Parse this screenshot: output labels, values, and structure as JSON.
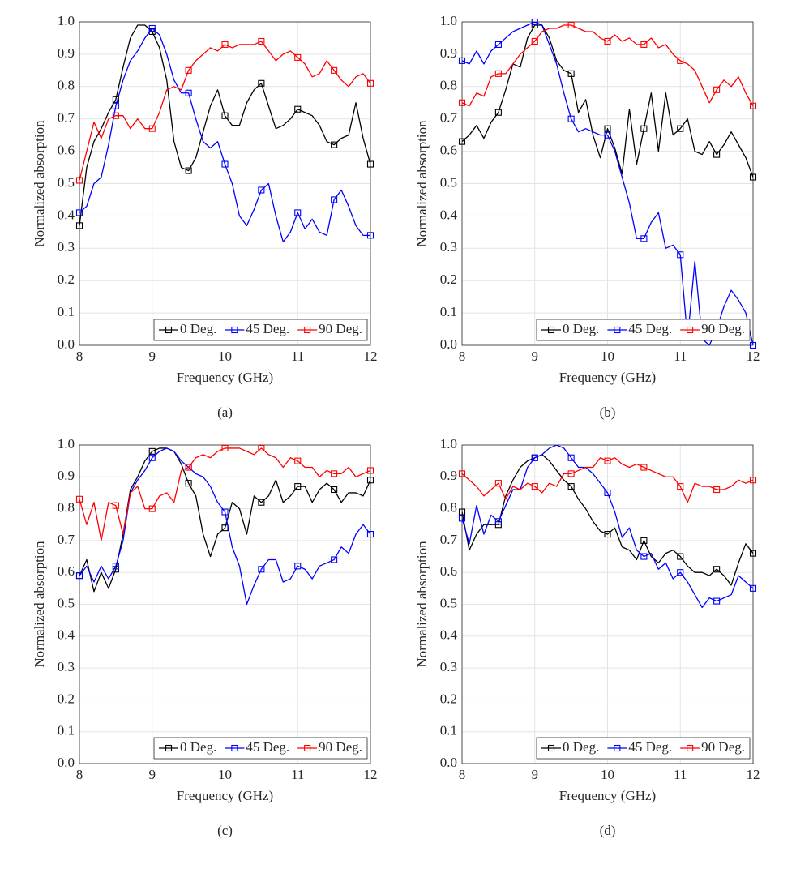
{
  "chart_data": [
    {
      "type": "line",
      "caption": "(a)",
      "xlabel": "Frequency (GHz)",
      "ylabel": "Normalized absorption",
      "x": [
        8,
        8.1,
        8.2,
        8.3,
        8.4,
        8.5,
        8.6,
        8.7,
        8.8,
        8.9,
        9,
        9.1,
        9.2,
        9.3,
        9.4,
        9.5,
        9.6,
        9.7,
        9.8,
        9.9,
        10,
        10.1,
        10.2,
        10.3,
        10.4,
        10.5,
        10.6,
        10.7,
        10.8,
        10.9,
        11,
        11.1,
        11.2,
        11.3,
        11.4,
        11.5,
        11.6,
        11.7,
        11.8,
        11.9,
        12
      ],
      "series": [
        {
          "name": "0 Deg.",
          "color": "#000000",
          "values": [
            0.37,
            0.55,
            0.63,
            0.67,
            0.72,
            0.76,
            0.86,
            0.95,
            0.99,
            0.99,
            0.97,
            0.92,
            0.82,
            0.63,
            0.55,
            0.54,
            0.58,
            0.66,
            0.74,
            0.79,
            0.71,
            0.68,
            0.68,
            0.75,
            0.79,
            0.81,
            0.74,
            0.67,
            0.68,
            0.7,
            0.73,
            0.72,
            0.71,
            0.68,
            0.63,
            0.62,
            0.64,
            0.65,
            0.75,
            0.64,
            0.56
          ]
        },
        {
          "name": "45 Deg.",
          "color": "#0000ff",
          "values": [
            0.41,
            0.43,
            0.5,
            0.52,
            0.62,
            0.74,
            0.82,
            0.88,
            0.91,
            0.95,
            0.98,
            0.96,
            0.9,
            0.82,
            0.78,
            0.78,
            0.7,
            0.63,
            0.61,
            0.63,
            0.56,
            0.5,
            0.4,
            0.37,
            0.42,
            0.48,
            0.5,
            0.4,
            0.32,
            0.35,
            0.41,
            0.36,
            0.39,
            0.35,
            0.34,
            0.45,
            0.48,
            0.43,
            0.37,
            0.34,
            0.34
          ]
        },
        {
          "name": "90 Deg.",
          "color": "#ff0000",
          "values": [
            0.51,
            0.6,
            0.69,
            0.64,
            0.7,
            0.71,
            0.71,
            0.67,
            0.7,
            0.67,
            0.67,
            0.72,
            0.79,
            0.8,
            0.79,
            0.85,
            0.88,
            0.9,
            0.92,
            0.91,
            0.93,
            0.92,
            0.93,
            0.93,
            0.93,
            0.94,
            0.91,
            0.88,
            0.9,
            0.91,
            0.89,
            0.87,
            0.83,
            0.84,
            0.88,
            0.85,
            0.82,
            0.8,
            0.83,
            0.84,
            0.81
          ]
        }
      ],
      "xlim": [
        8,
        12
      ],
      "ylim": [
        0,
        1
      ],
      "xticks": [
        8,
        9,
        10,
        11,
        12
      ],
      "yticks": [
        {
          "value": 0,
          "label": "0.0"
        },
        0.1,
        0.2,
        0.3,
        0.4,
        0.5,
        0.6,
        0.7,
        0.8,
        0.9,
        {
          "value": 1,
          "label": "1.0"
        }
      ],
      "grid": true,
      "legend": "lower right",
      "marker": "square",
      "marker_every": 5
    },
    {
      "type": "line",
      "caption": "(b)",
      "xlabel": "Frequency (GHz)",
      "ylabel": "Normalized absorption",
      "x": [
        8,
        8.1,
        8.2,
        8.3,
        8.4,
        8.5,
        8.6,
        8.7,
        8.8,
        8.9,
        9,
        9.1,
        9.2,
        9.3,
        9.4,
        9.5,
        9.6,
        9.7,
        9.8,
        9.9,
        10,
        10.1,
        10.2,
        10.3,
        10.4,
        10.5,
        10.6,
        10.7,
        10.8,
        10.9,
        11,
        11.1,
        11.2,
        11.3,
        11.4,
        11.5,
        11.6,
        11.7,
        11.8,
        11.9,
        12
      ],
      "series": [
        {
          "name": "0 Deg.",
          "color": "#000000",
          "values": [
            0.63,
            0.65,
            0.68,
            0.64,
            0.69,
            0.72,
            0.79,
            0.87,
            0.86,
            0.95,
            0.99,
            0.99,
            0.95,
            0.88,
            0.85,
            0.84,
            0.72,
            0.76,
            0.65,
            0.58,
            0.67,
            0.61,
            0.53,
            0.73,
            0.56,
            0.67,
            0.78,
            0.6,
            0.78,
            0.65,
            0.67,
            0.7,
            0.6,
            0.59,
            0.63,
            0.59,
            0.62,
            0.66,
            0.62,
            0.58,
            0.52
          ]
        },
        {
          "name": "45 Deg.",
          "color": "#0000ff",
          "values": [
            0.88,
            0.87,
            0.91,
            0.87,
            0.91,
            0.93,
            0.95,
            0.97,
            0.98,
            0.99,
            1.0,
            0.99,
            0.93,
            0.87,
            0.78,
            0.7,
            0.66,
            0.67,
            0.66,
            0.65,
            0.65,
            0.6,
            0.52,
            0.44,
            0.33,
            0.33,
            0.38,
            0.41,
            0.3,
            0.31,
            0.28,
            0.02,
            0.26,
            0.02,
            0,
            0.05,
            0.12,
            0.17,
            0.14,
            0.1,
            0
          ]
        },
        {
          "name": "90 Deg.",
          "color": "#ff0000",
          "values": [
            0.75,
            0.74,
            0.78,
            0.77,
            0.83,
            0.84,
            0.84,
            0.87,
            0.9,
            0.92,
            0.94,
            0.97,
            0.98,
            0.98,
            0.99,
            0.99,
            0.98,
            0.97,
            0.97,
            0.95,
            0.94,
            0.96,
            0.94,
            0.95,
            0.93,
            0.93,
            0.95,
            0.92,
            0.93,
            0.9,
            0.88,
            0.87,
            0.85,
            0.8,
            0.75,
            0.79,
            0.82,
            0.8,
            0.83,
            0.78,
            0.74
          ]
        }
      ],
      "xlim": [
        8,
        12
      ],
      "ylim": [
        0,
        1
      ],
      "xticks": [
        8,
        9,
        10,
        11,
        12
      ],
      "yticks": [
        {
          "value": 0,
          "label": "0.0"
        },
        0.1,
        0.2,
        0.3,
        0.4,
        0.5,
        0.6,
        0.7,
        0.8,
        0.9,
        {
          "value": 1,
          "label": "1.0"
        }
      ],
      "grid": true,
      "legend": "lower right",
      "marker": "square",
      "marker_every": 5
    },
    {
      "type": "line",
      "caption": "(c)",
      "xlabel": "Frequency (GHz)",
      "ylabel": "Normalized absorption",
      "x": [
        8,
        8.1,
        8.2,
        8.3,
        8.4,
        8.5,
        8.6,
        8.7,
        8.8,
        8.9,
        9,
        9.1,
        9.2,
        9.3,
        9.4,
        9.5,
        9.6,
        9.7,
        9.8,
        9.9,
        10,
        10.1,
        10.2,
        10.3,
        10.4,
        10.5,
        10.6,
        10.7,
        10.8,
        10.9,
        11,
        11.1,
        11.2,
        11.3,
        11.4,
        11.5,
        11.6,
        11.7,
        11.8,
        11.9,
        12
      ],
      "series": [
        {
          "name": "0 Deg.",
          "color": "#000000",
          "values": [
            0.59,
            0.64,
            0.54,
            0.6,
            0.55,
            0.61,
            0.72,
            0.86,
            0.9,
            0.95,
            0.98,
            0.99,
            0.99,
            0.98,
            0.94,
            0.88,
            0.84,
            0.72,
            0.65,
            0.72,
            0.74,
            0.82,
            0.8,
            0.72,
            0.84,
            0.82,
            0.84,
            0.89,
            0.82,
            0.84,
            0.87,
            0.87,
            0.82,
            0.86,
            0.88,
            0.86,
            0.82,
            0.85,
            0.85,
            0.84,
            0.89
          ]
        },
        {
          "name": "45 Deg.",
          "color": "#0000ff",
          "values": [
            0.59,
            0.62,
            0.57,
            0.62,
            0.58,
            0.62,
            0.7,
            0.85,
            0.89,
            0.92,
            0.96,
            0.98,
            0.99,
            0.98,
            0.95,
            0.93,
            0.91,
            0.9,
            0.87,
            0.82,
            0.79,
            0.68,
            0.62,
            0.5,
            0.56,
            0.61,
            0.64,
            0.64,
            0.57,
            0.58,
            0.62,
            0.61,
            0.58,
            0.62,
            0.63,
            0.64,
            0.68,
            0.66,
            0.72,
            0.75,
            0.72
          ]
        },
        {
          "name": "90 Deg.",
          "color": "#ff0000",
          "values": [
            0.83,
            0.75,
            0.82,
            0.7,
            0.82,
            0.81,
            0.72,
            0.85,
            0.87,
            0.8,
            0.8,
            0.84,
            0.85,
            0.82,
            0.92,
            0.93,
            0.96,
            0.97,
            0.96,
            0.98,
            0.99,
            0.99,
            0.99,
            0.98,
            0.97,
            0.99,
            0.97,
            0.96,
            0.93,
            0.96,
            0.95,
            0.93,
            0.93,
            0.9,
            0.92,
            0.91,
            0.91,
            0.93,
            0.9,
            0.91,
            0.92
          ]
        }
      ],
      "xlim": [
        8,
        12
      ],
      "ylim": [
        0,
        1
      ],
      "xticks": [
        8,
        9,
        10,
        11,
        12
      ],
      "yticks": [
        {
          "value": 0,
          "label": "0.0"
        },
        0.1,
        0.2,
        0.3,
        0.4,
        0.5,
        0.6,
        0.7,
        0.8,
        0.9,
        {
          "value": 1,
          "label": "1.0"
        }
      ],
      "grid": true,
      "legend": "lower right",
      "marker": "square",
      "marker_every": 5
    },
    {
      "type": "line",
      "caption": "(d)",
      "xlabel": "Frequency (GHz)",
      "ylabel": "Normalized absorption",
      "x": [
        8,
        8.1,
        8.2,
        8.3,
        8.4,
        8.5,
        8.6,
        8.7,
        8.8,
        8.9,
        9,
        9.1,
        9.2,
        9.3,
        9.4,
        9.5,
        9.6,
        9.7,
        9.8,
        9.9,
        10,
        10.1,
        10.2,
        10.3,
        10.4,
        10.5,
        10.6,
        10.7,
        10.8,
        10.9,
        11,
        11.1,
        11.2,
        11.3,
        11.4,
        11.5,
        11.6,
        11.7,
        11.8,
        11.9,
        12
      ],
      "series": [
        {
          "name": "0 Deg.",
          "color": "#000000",
          "values": [
            0.79,
            0.67,
            0.72,
            0.75,
            0.75,
            0.75,
            0.84,
            0.89,
            0.93,
            0.95,
            0.96,
            0.97,
            0.95,
            0.92,
            0.89,
            0.87,
            0.83,
            0.8,
            0.76,
            0.73,
            0.72,
            0.74,
            0.68,
            0.67,
            0.64,
            0.7,
            0.65,
            0.63,
            0.66,
            0.67,
            0.65,
            0.62,
            0.6,
            0.6,
            0.59,
            0.61,
            0.59,
            0.56,
            0.63,
            0.69,
            0.66
          ]
        },
        {
          "name": "45 Deg.",
          "color": "#0000ff",
          "values": [
            0.77,
            0.69,
            0.81,
            0.72,
            0.78,
            0.76,
            0.81,
            0.86,
            0.86,
            0.93,
            0.96,
            0.97,
            0.99,
            1.0,
            0.99,
            0.96,
            0.93,
            0.93,
            0.91,
            0.88,
            0.85,
            0.79,
            0.71,
            0.74,
            0.67,
            0.65,
            0.66,
            0.61,
            0.63,
            0.58,
            0.6,
            0.57,
            0.53,
            0.49,
            0.52,
            0.51,
            0.52,
            0.53,
            0.59,
            0.57,
            0.55
          ]
        },
        {
          "name": "90 Deg.",
          "color": "#ff0000",
          "values": [
            0.91,
            0.89,
            0.87,
            0.84,
            0.86,
            0.88,
            0.83,
            0.87,
            0.86,
            0.88,
            0.87,
            0.85,
            0.88,
            0.87,
            0.91,
            0.91,
            0.92,
            0.93,
            0.93,
            0.96,
            0.95,
            0.96,
            0.94,
            0.93,
            0.94,
            0.93,
            0.92,
            0.91,
            0.9,
            0.9,
            0.87,
            0.82,
            0.88,
            0.87,
            0.87,
            0.86,
            0.86,
            0.87,
            0.89,
            0.88,
            0.89
          ]
        }
      ],
      "xlim": [
        8,
        12
      ],
      "ylim": [
        0,
        1
      ],
      "xticks": [
        8,
        9,
        10,
        11,
        12
      ],
      "yticks": [
        {
          "value": 0,
          "label": "0.0"
        },
        0.1,
        0.2,
        0.3,
        0.4,
        0.5,
        0.6,
        0.7,
        0.8,
        0.9,
        {
          "value": 1,
          "label": "1.0"
        }
      ],
      "grid": true,
      "legend": "lower right",
      "marker": "square",
      "marker_every": 5
    }
  ]
}
